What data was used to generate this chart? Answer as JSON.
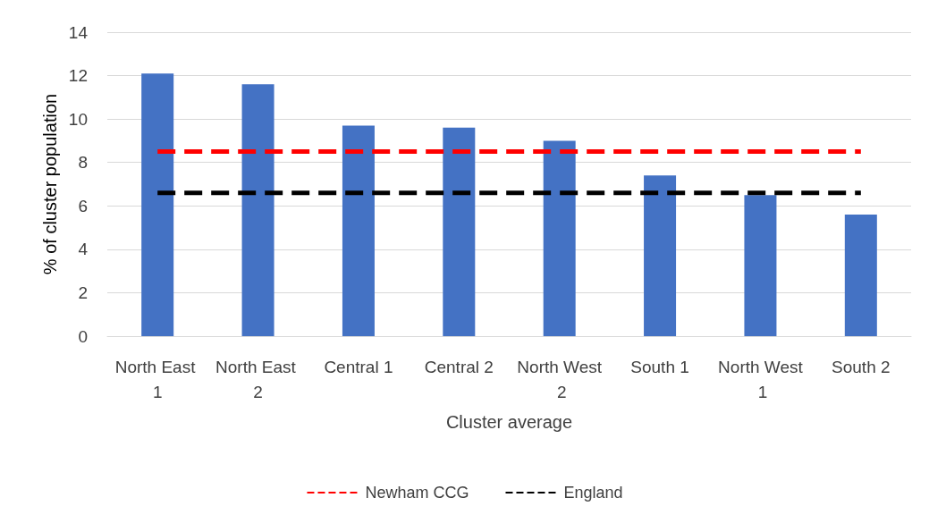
{
  "chart_data": {
    "type": "bar",
    "xlabel": "Cluster average",
    "ylabel": "% of cluster population",
    "categories": [
      "North East 1",
      "North East 2",
      "Central 1",
      "Central 2",
      "North West 2",
      "South 1",
      "North West 1",
      "South 2"
    ],
    "series": [
      {
        "color": "#4472c4",
        "values": [
          12.1,
          11.6,
          9.7,
          9.6,
          9.0,
          7.4,
          6.5,
          5.6
        ]
      },
      {
        "type": "line",
        "name": "Newham CCG",
        "color": "#ff0000",
        "line_style": "dashed",
        "values": [
          8.5,
          8.5,
          8.5,
          8.5,
          8.5,
          8.5,
          8.5,
          8.5
        ]
      },
      {
        "type": "line",
        "name": "England",
        "color": "#000000",
        "line_style": "dashed",
        "values": [
          6.6,
          6.6,
          6.6,
          6.6,
          6.6,
          6.6,
          6.6,
          6.6
        ]
      }
    ],
    "ylim": [
      0,
      14
    ],
    "yticks": [
      0,
      2,
      4,
      6,
      8,
      10,
      12,
      14
    ],
    "grid": "y",
    "legend": "bottom",
    "marker": "none"
  }
}
